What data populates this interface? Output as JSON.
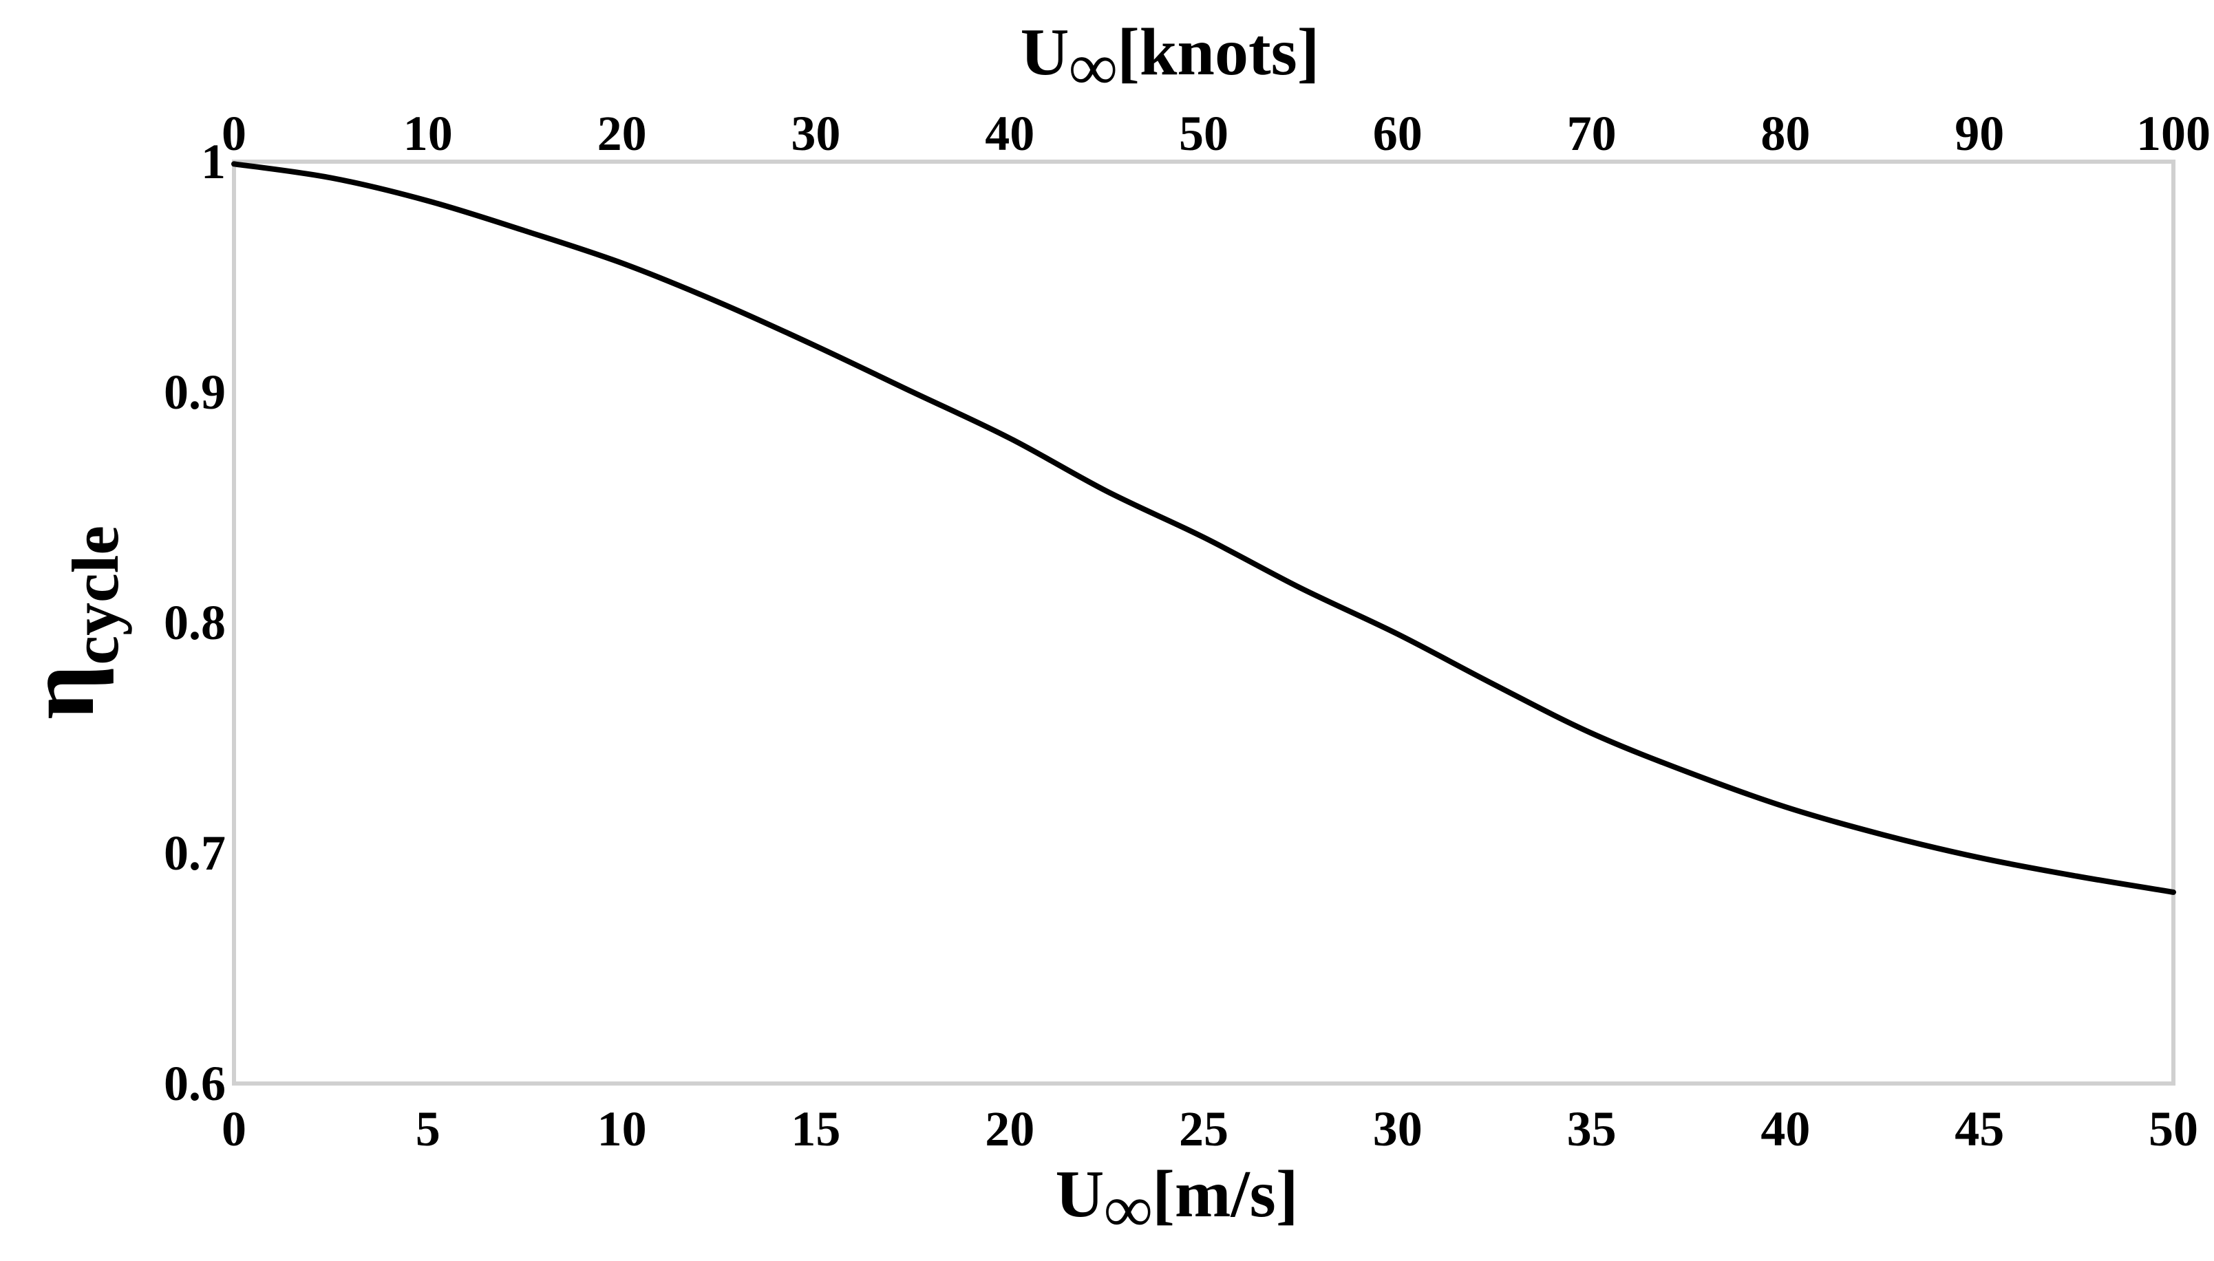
{
  "chart_data": {
    "type": "line",
    "x_bottom": {
      "label": "U",
      "label_subscript": "∞",
      "label_unit": "[m/s]",
      "range": [
        0,
        50
      ],
      "ticks": [
        0,
        5,
        10,
        15,
        20,
        25,
        30,
        35,
        40,
        45,
        50
      ]
    },
    "x_top": {
      "label": "U",
      "label_subscript": "∞",
      "label_unit": "[knots]",
      "range": [
        0,
        100
      ],
      "ticks": [
        0,
        10,
        20,
        30,
        40,
        50,
        60,
        70,
        80,
        90,
        100
      ]
    },
    "y": {
      "label": "η",
      "label_subscript": "cycle",
      "range": [
        0.6,
        1.0
      ],
      "ticks": [
        "0.6",
        "0.7",
        "0.8",
        "0.9",
        "1"
      ]
    },
    "grid": false,
    "legend": "none",
    "series": [
      {
        "color": "#000000",
        "x": [
          0,
          2.5,
          5,
          7.5,
          10,
          12.5,
          15,
          17.5,
          20,
          22.5,
          25,
          27.5,
          30,
          32.5,
          35,
          37.5,
          40,
          42.5,
          45,
          47.5,
          50
        ],
        "y": [
          0.999,
          0.993,
          0.983,
          0.97,
          0.956,
          0.939,
          0.92,
          0.9,
          0.88,
          0.857,
          0.837,
          0.815,
          0.795,
          0.773,
          0.752,
          0.735,
          0.72,
          0.708,
          0.698,
          0.69,
          0.683
        ]
      }
    ]
  }
}
